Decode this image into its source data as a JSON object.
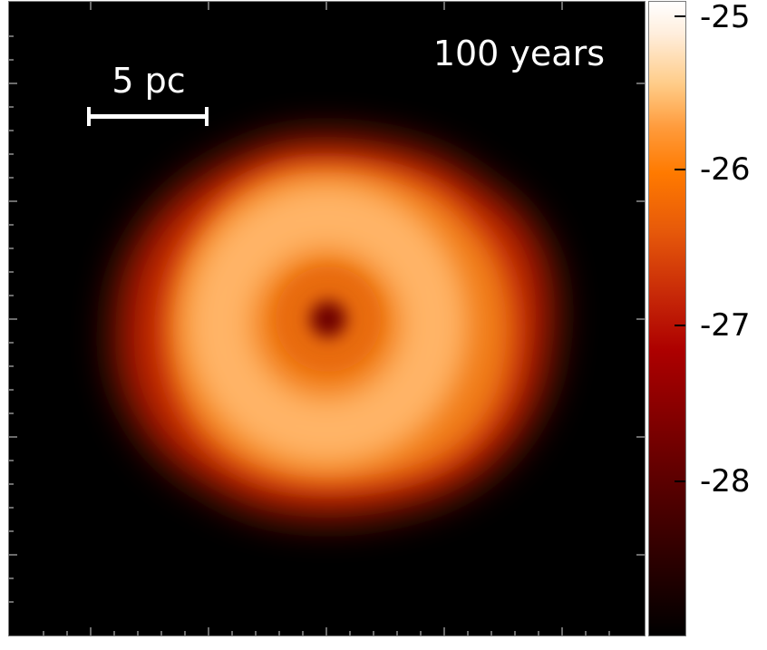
{
  "annotations": {
    "time_label": "100 years",
    "scale_label": "5 pc"
  },
  "colorbar": {
    "tick_labels": [
      "-25",
      "-26",
      "-27",
      "-28"
    ],
    "colors": [
      "#ffffff",
      "#ffcc88",
      "#ff7a00",
      "#ad0000",
      "#000000"
    ]
  },
  "image_colors": {
    "background": "#000000",
    "ring_inner": "#ffb060",
    "ring_outer": "#d04008",
    "center_hole": "#6a0000"
  }
}
